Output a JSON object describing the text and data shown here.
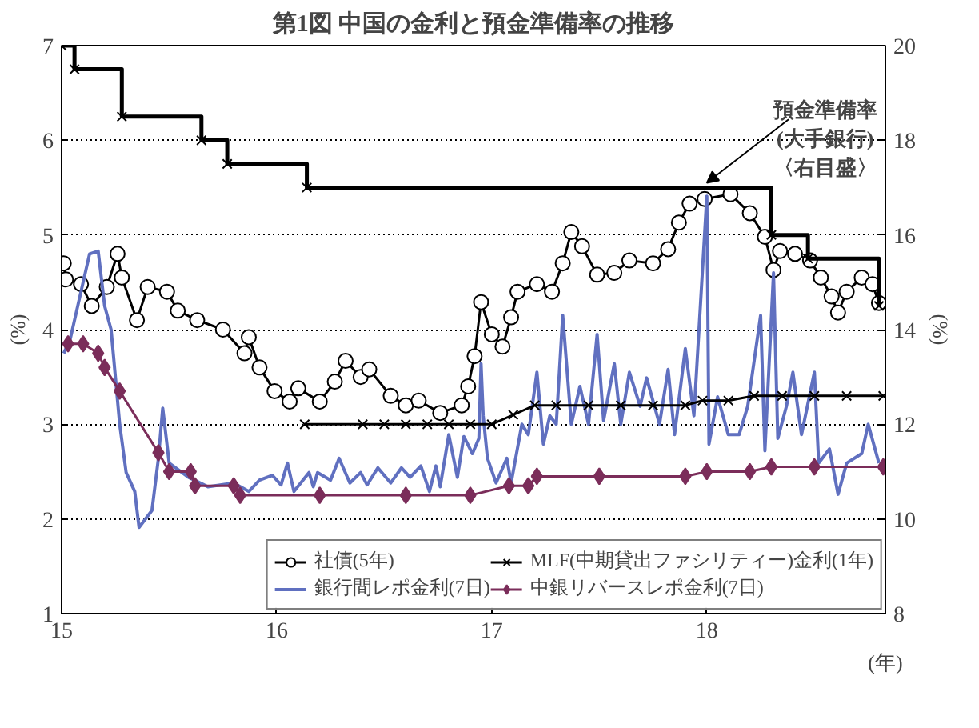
{
  "chart_data": {
    "type": "line",
    "title": "第1図 中国の金利と預金準備率の推移",
    "ylabel": "(%)",
    "y2label": "(%)",
    "xlabel": "(年)",
    "xlim": [
      15,
      18.83
    ],
    "xticks": [
      15,
      16,
      17,
      18
    ],
    "ylim": [
      1,
      7
    ],
    "yticks": [
      1,
      2,
      3,
      4,
      5,
      6,
      7
    ],
    "y2lim": [
      8,
      20
    ],
    "y2ticks": [
      8,
      10,
      12,
      14,
      16,
      18,
      20
    ],
    "grid": "y",
    "legend": "bottom right",
    "annotations": [
      {
        "text": "預金準備率\n(大手銀行)\n〈右目盛〉",
        "x": 18.0,
        "y": 5.5
      }
    ],
    "series": [
      {
        "name": "社債(5年)",
        "color": "#000000",
        "marker": "circle",
        "x": [
          15.01,
          15.02,
          15.09,
          15.14,
          15.21,
          15.26,
          15.28,
          15.35,
          15.4,
          15.49,
          15.54,
          15.63,
          15.75,
          15.85,
          15.87,
          15.92,
          15.99,
          16.06,
          16.1,
          16.2,
          16.27,
          16.32,
          16.39,
          16.43,
          16.53,
          16.6,
          16.66,
          16.76,
          16.86,
          16.89,
          16.92,
          16.95,
          17.0,
          17.05,
          17.09,
          17.12,
          17.21,
          17.28,
          17.33,
          17.37,
          17.42,
          17.49,
          17.57,
          17.64,
          17.75,
          17.82,
          17.87,
          17.92,
          17.99,
          18.11,
          18.2,
          18.27,
          18.31,
          18.34,
          18.41,
          18.48,
          18.53,
          18.58,
          18.61,
          18.65,
          18.72,
          18.77,
          18.8
        ],
        "values": [
          4.7,
          4.53,
          4.48,
          4.25,
          4.45,
          4.8,
          4.55,
          4.1,
          4.45,
          4.4,
          4.2,
          4.1,
          4.0,
          3.75,
          3.92,
          3.6,
          3.35,
          3.24,
          3.38,
          3.24,
          3.45,
          3.67,
          3.5,
          3.58,
          3.3,
          3.2,
          3.25,
          3.12,
          3.2,
          3.4,
          3.72,
          4.29,
          3.95,
          3.82,
          4.13,
          4.4,
          4.48,
          4.4,
          4.7,
          5.03,
          4.88,
          4.58,
          4.6,
          4.73,
          4.7,
          4.85,
          5.13,
          5.33,
          5.38,
          5.43,
          5.23,
          4.98,
          4.63,
          4.83,
          4.8,
          4.73,
          4.55,
          4.35,
          4.18,
          4.4,
          4.55,
          4.48,
          4.28
        ]
      },
      {
        "name": "銀行間レポ金利(7日)",
        "color": "#6070c0",
        "marker": "none",
        "x": [
          15.01,
          15.04,
          15.13,
          15.17,
          15.2,
          15.23,
          15.27,
          15.3,
          15.34,
          15.36,
          15.42,
          15.45,
          15.47,
          15.5,
          15.59,
          15.68,
          15.8,
          15.87,
          15.92,
          15.98,
          16.02,
          16.05,
          16.08,
          16.15,
          16.17,
          16.19,
          16.25,
          16.29,
          16.34,
          16.39,
          16.42,
          16.47,
          16.53,
          16.58,
          16.62,
          16.67,
          16.71,
          16.74,
          16.76,
          16.8,
          16.84,
          16.87,
          16.91,
          16.94,
          16.95,
          16.96,
          16.98,
          17.02,
          17.07,
          17.09,
          17.14,
          17.17,
          17.21,
          17.24,
          17.27,
          17.3,
          17.33,
          17.37,
          17.41,
          17.45,
          17.49,
          17.52,
          17.57,
          17.6,
          17.64,
          17.69,
          17.72,
          17.78,
          17.82,
          17.85,
          17.9,
          17.94,
          18.0,
          18.01,
          18.05,
          18.1,
          18.15,
          18.19,
          18.25,
          18.27,
          18.31,
          18.33,
          18.37,
          18.4,
          18.44,
          18.5,
          18.52,
          18.57,
          18.61,
          18.65,
          18.72,
          18.75,
          18.8
        ],
        "values": [
          3.75,
          3.9,
          4.8,
          4.83,
          4.25,
          4.0,
          3.0,
          2.49,
          2.29,
          1.91,
          2.09,
          2.64,
          3.17,
          2.59,
          2.44,
          2.34,
          2.38,
          2.29,
          2.41,
          2.46,
          2.36,
          2.59,
          2.29,
          2.49,
          2.34,
          2.49,
          2.41,
          2.64,
          2.38,
          2.49,
          2.36,
          2.54,
          2.38,
          2.54,
          2.44,
          2.56,
          2.29,
          2.56,
          2.34,
          2.89,
          2.44,
          2.87,
          2.69,
          2.85,
          3.64,
          3.09,
          2.64,
          2.38,
          2.64,
          2.38,
          3.0,
          2.89,
          3.55,
          2.79,
          3.09,
          3.0,
          4.15,
          3.0,
          3.4,
          3.0,
          3.95,
          3.04,
          3.64,
          3.0,
          3.55,
          3.19,
          3.49,
          3.0,
          3.58,
          2.89,
          3.8,
          3.09,
          5.41,
          2.79,
          3.29,
          2.89,
          2.89,
          3.19,
          4.15,
          2.72,
          4.6,
          2.85,
          3.19,
          3.55,
          2.89,
          3.55,
          2.59,
          2.74,
          2.26,
          2.59,
          2.69,
          3.0,
          2.59
        ]
      },
      {
        "name": "MLF(中期貸出ファシリティー)金利(1年)",
        "color": "#000000",
        "marker": "cross",
        "x": [
          16.13,
          16.4,
          16.5,
          16.6,
          16.7,
          16.8,
          16.9,
          17.0,
          17.1,
          17.2,
          17.3,
          17.45,
          17.6,
          17.75,
          17.9,
          17.98,
          18.1,
          18.22,
          18.35,
          18.5,
          18.65,
          18.82
        ],
        "values": [
          3.0,
          3.0,
          3.0,
          3.0,
          3.0,
          3.0,
          3.0,
          3.0,
          3.1,
          3.2,
          3.2,
          3.2,
          3.2,
          3.2,
          3.2,
          3.25,
          3.25,
          3.3,
          3.3,
          3.3,
          3.3,
          3.3
        ]
      },
      {
        "name": "中銀リバースレポ金利(7日)",
        "color": "#7b2d5a",
        "marker": "diamond",
        "x": [
          15.03,
          15.1,
          15.17,
          15.2,
          15.27,
          15.45,
          15.5,
          15.6,
          15.62,
          15.8,
          15.83,
          16.2,
          16.6,
          16.9,
          17.08,
          17.17,
          17.21,
          17.5,
          17.9,
          18.0,
          18.2,
          18.3,
          18.5,
          18.82
        ],
        "values": [
          3.85,
          3.85,
          3.75,
          3.6,
          3.35,
          2.7,
          2.5,
          2.5,
          2.35,
          2.35,
          2.25,
          2.25,
          2.25,
          2.25,
          2.35,
          2.35,
          2.45,
          2.45,
          2.45,
          2.5,
          2.5,
          2.55,
          2.55,
          2.55
        ]
      },
      {
        "type": "step",
        "axis": "y2",
        "color": "#000000",
        "marker": "cross",
        "x": [
          15.0,
          15.06,
          15.28,
          15.65,
          15.77,
          16.14,
          18.3,
          18.47,
          18.8
        ],
        "values": [
          20,
          19.5,
          18.5,
          18.0,
          17.5,
          17.0,
          16.0,
          15.5,
          14.5
        ]
      }
    ]
  }
}
